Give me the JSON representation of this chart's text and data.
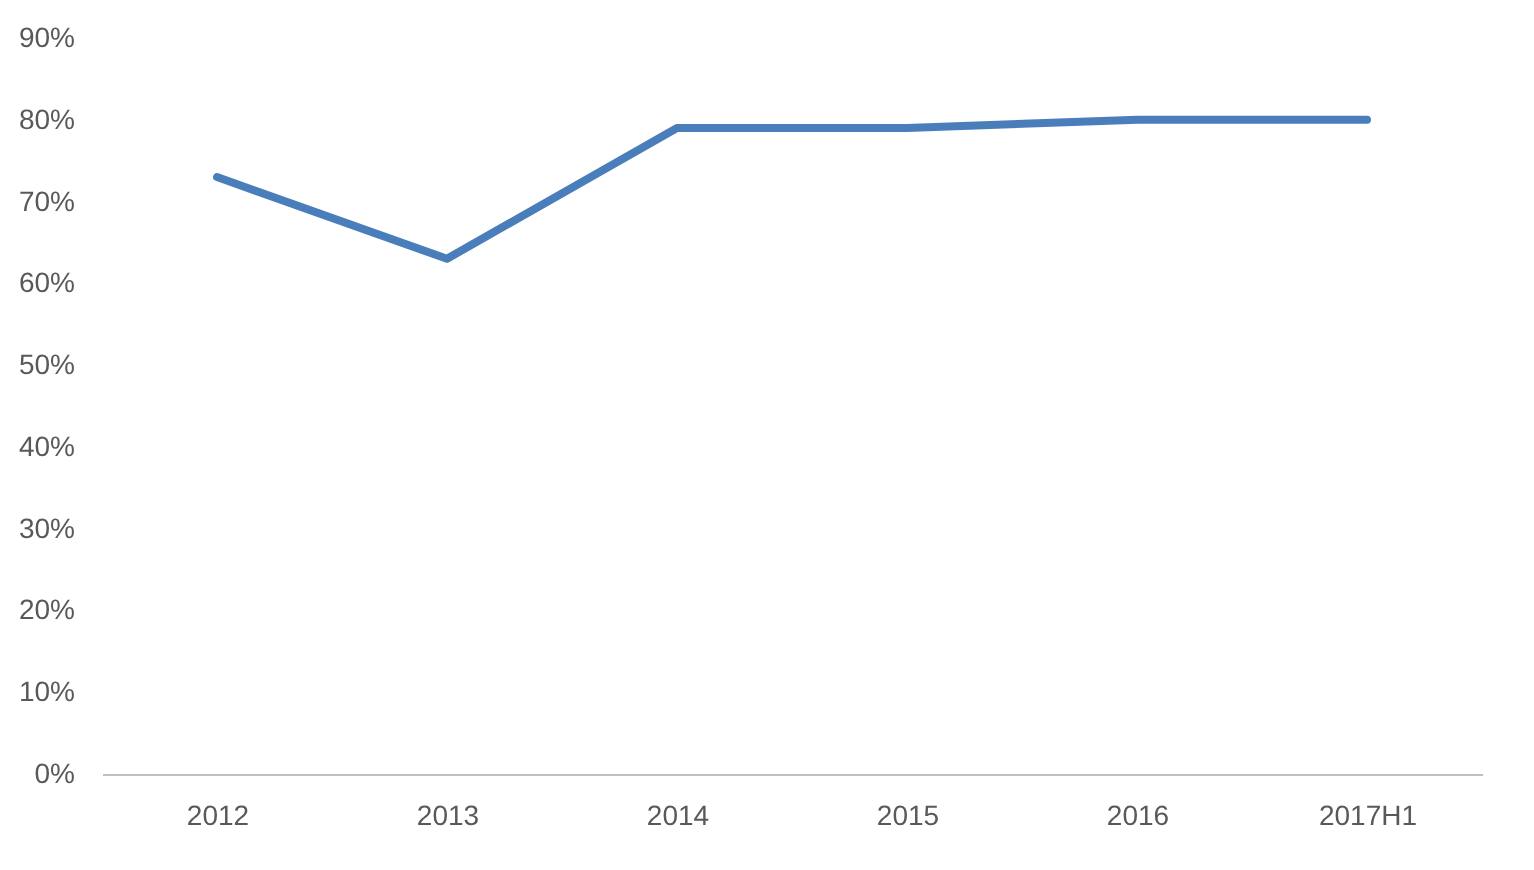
{
  "chart_data": {
    "type": "line",
    "categories": [
      "2012",
      "2013",
      "2014",
      "2015",
      "2016",
      "2017H1"
    ],
    "series": [
      {
        "color": "#4a7ebb",
        "values": [
          73,
          63,
          79,
          79,
          80,
          80
        ]
      }
    ],
    "ylim": [
      0,
      90
    ],
    "yticks": [
      {
        "value": 0,
        "label": "0%"
      },
      {
        "value": 10,
        "label": "10%"
      },
      {
        "value": 20,
        "label": "20%"
      },
      {
        "value": 30,
        "label": "30%"
      },
      {
        "value": 40,
        "label": "40%"
      },
      {
        "value": 50,
        "label": "50%"
      },
      {
        "value": 60,
        "label": "60%"
      },
      {
        "value": 70,
        "label": "70%"
      },
      {
        "value": 80,
        "label": "80%"
      },
      {
        "value": 90,
        "label": "90%"
      }
    ],
    "grid": false,
    "legend": false,
    "marker": "none",
    "line_style": "solid"
  }
}
